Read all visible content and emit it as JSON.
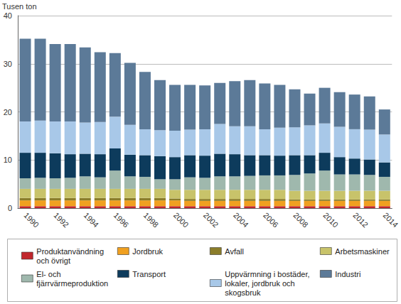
{
  "chart_data": {
    "type": "bar",
    "stacked": true,
    "grid": true,
    "legend": "bottom",
    "y_label": "Tusen ton",
    "categories": [
      "1990",
      null,
      "1992",
      null,
      "1994",
      null,
      "1996",
      null,
      "1998",
      null,
      "2000",
      null,
      "2002",
      null,
      "2004",
      null,
      "2006",
      null,
      "2008",
      null,
      "2010",
      null,
      "2012",
      null,
      "2014"
    ],
    "ylim": [
      0,
      40
    ],
    "yticks": [
      0,
      10,
      20,
      30,
      40
    ],
    "series": [
      {
        "name": "Produktanvändning och övrigt",
        "color": "#c1272d",
        "values": [
          0.4,
          0.4,
          0.4,
          0.4,
          0.4,
          0.4,
          0.4,
          0.4,
          0.4,
          0.4,
          0.4,
          0.4,
          0.4,
          0.4,
          0.4,
          0.4,
          0.4,
          0.4,
          0.4,
          0.4,
          0.4,
          0.4,
          0.4,
          0.4,
          0.4
        ]
      },
      {
        "name": "Jordbruk",
        "color": "#f0a020",
        "values": [
          1.2,
          1.2,
          1.2,
          1.2,
          1.2,
          1.2,
          1.2,
          1.2,
          1.2,
          1.2,
          1.2,
          1.1,
          1.1,
          1.1,
          1.1,
          1.1,
          1.1,
          1.1,
          1.1,
          1.1,
          1.1,
          1.1,
          1.1,
          1.1,
          1.1
        ]
      },
      {
        "name": "Avfall",
        "color": "#8b7d2a",
        "values": [
          0.5,
          0.5,
          0.5,
          0.5,
          0.5,
          0.5,
          0.5,
          0.5,
          0.5,
          0.5,
          0.4,
          0.4,
          0.4,
          0.4,
          0.4,
          0.4,
          0.4,
          0.4,
          0.3,
          0.3,
          0.3,
          0.3,
          0.3,
          0.3,
          0.3
        ]
      },
      {
        "name": "Arbetsmaskiner",
        "color": "#c8c36a",
        "values": [
          1.9,
          1.9,
          1.9,
          1.9,
          1.9,
          1.9,
          1.9,
          1.9,
          1.9,
          1.9,
          1.8,
          1.9,
          1.9,
          1.9,
          1.9,
          1.9,
          1.9,
          1.9,
          1.8,
          1.8,
          1.8,
          1.8,
          1.8,
          1.8,
          1.8
        ]
      },
      {
        "name": "El- och fjärrvärmeproduktion",
        "color": "#9fb8ad",
        "values": [
          2.2,
          2.3,
          2.2,
          2.3,
          2.6,
          2.4,
          3.8,
          2.6,
          2.5,
          2.0,
          2.2,
          2.6,
          2.5,
          2.8,
          2.8,
          2.9,
          3.0,
          3.0,
          3.3,
          3.6,
          4.2,
          3.4,
          3.4,
          3.3,
          2.9
        ]
      },
      {
        "name": "Transport",
        "color": "#0d3b5c",
        "values": [
          5.3,
          5.2,
          5.2,
          4.9,
          4.7,
          4.8,
          4.6,
          4.5,
          4.5,
          4.8,
          4.6,
          4.6,
          4.6,
          4.7,
          4.6,
          4.3,
          4.2,
          4.1,
          4.1,
          3.8,
          3.7,
          3.6,
          3.3,
          3.2,
          3.0
        ]
      },
      {
        "name": "Uppvärmning i bostäder, lokaler, jordbruk och skogsbruk",
        "color": "#a8c8e8",
        "values": [
          6.5,
          6.7,
          6.6,
          6.8,
          6.5,
          6.7,
          6.6,
          6.2,
          5.4,
          5.4,
          5.5,
          5.3,
          5.5,
          6.2,
          5.8,
          6.0,
          5.4,
          5.8,
          5.8,
          6.2,
          6.1,
          6.3,
          6.1,
          6.2,
          5.8
        ]
      },
      {
        "name": "Industri",
        "color": "#5c7a98",
        "values": [
          17.2,
          17.0,
          16.1,
          16.1,
          15.6,
          14.5,
          13.2,
          12.9,
          11.9,
          10.4,
          9.5,
          9.3,
          9.1,
          8.5,
          9.4,
          9.6,
          9.5,
          8.9,
          7.9,
          6.6,
          7.4,
          7.2,
          7.2,
          6.9,
          5.2
        ]
      }
    ]
  }
}
